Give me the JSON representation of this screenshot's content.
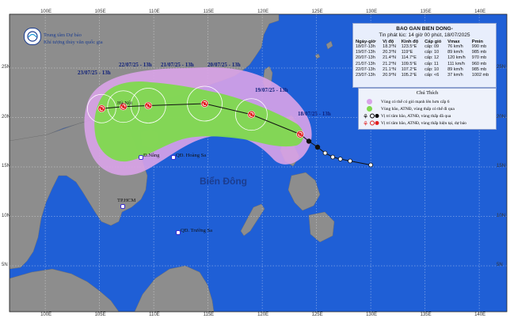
{
  "bulletin": {
    "title": "BAO GAN BIEN DONG-",
    "issued": "Tin phát lúc: 14 giờ 00 phút, 18/07/2025",
    "headers": [
      "Ngày-giờ",
      "Vị độ",
      "Kinh độ",
      "Cấp gió",
      "Vmax",
      "Pmin"
    ],
    "rows": [
      [
        "18/07-13h",
        "18.3°N",
        "123.5°E",
        "cấp: 09",
        "76 km/h",
        "990 mb"
      ],
      [
        "19/07-13h",
        "20.3°N",
        "119°E",
        "cấp: 10",
        "89 km/h",
        "985 mb"
      ],
      [
        "20/07-13h",
        "21.4°N",
        "114.7°E",
        "cấp: 12",
        "120 km/h",
        "970 mb"
      ],
      [
        "21/07-13h",
        "21.2°N",
        "109.5°E",
        "cấp: 11",
        "111 km/h",
        "960 mb"
      ],
      [
        "22/07-13h",
        "21.1°N",
        "107.2°E",
        "cấp: 10",
        "89 km/h",
        "985 mb"
      ],
      [
        "23/07-13h",
        "20.9°N",
        "105.2°E",
        "cấp: <6",
        "37 km/h",
        "1002 mb"
      ]
    ]
  },
  "agency": {
    "line1": "Trung tâm Dự báo",
    "line2": "Khí tượng thủy văn quốc gia"
  },
  "legend": {
    "title": "Chú Thích",
    "items": [
      {
        "text": "Vùng có thể có gió mạnh lên hơn cấp 6",
        "color": "#d9a3e8"
      },
      {
        "text": "Vùng bão, ATNĐ, vùng thấp có thể đi qua",
        "color": "#88dd55"
      },
      {
        "text": "Vị trí tâm bão, ATNĐ, vùng thấp đã qua",
        "color": "#000000"
      },
      {
        "text": "Vị trí tâm bão, ATNĐ, vùng thấp hiện tại, dự báo",
        "color": "#e02020"
      }
    ]
  },
  "forecast_labels": [
    {
      "text": "23/07/25 - 13h"
    },
    {
      "text": "22/07/25 - 13h"
    },
    {
      "text": "21/07/25 - 13h"
    },
    {
      "text": "20/07/25 - 13h"
    },
    {
      "text": "19/07/25 - 13h"
    },
    {
      "text": "18/07/25 - 13h"
    }
  ],
  "places": {
    "hanoi": "Hà Nội",
    "danang": "Đ.Nẵng",
    "hoangsa": "QĐ. Hoàng Sa",
    "hcm": "TP.HCM",
    "truongsa": "QĐ. Trường Sa",
    "sea": "Biển Đông"
  },
  "axes": {
    "lon_top": [
      "100E",
      "105E",
      "110E",
      "115E",
      "120E",
      "125E",
      "130E",
      "135E",
      "140E"
    ],
    "lon_bottom": [
      "100E",
      "105E",
      "110E",
      "115E",
      "120E",
      "125E",
      "130E",
      "135E",
      "140E"
    ],
    "lat_left": [
      "25N",
      "20N",
      "15N",
      "10N",
      "5N"
    ],
    "lat_right": [
      "25N",
      "20N",
      "15N",
      "10N",
      "5N"
    ]
  },
  "track": {
    "past": [
      {
        "lat": 18.3,
        "lon": 123.5
      },
      {
        "lat": 17.6,
        "lon": 124.3
      },
      {
        "lat": 17.0,
        "lon": 125.1
      },
      {
        "lat": 16.4,
        "lon": 125.8
      },
      {
        "lat": 16.0,
        "lon": 126.5
      },
      {
        "lat": 15.8,
        "lon": 127.2
      },
      {
        "lat": 15.6,
        "lon": 128.1
      },
      {
        "lat": 15.2,
        "lon": 130.0
      }
    ],
    "forecast": [
      {
        "lat": 18.3,
        "lon": 123.5
      },
      {
        "lat": 20.3,
        "lon": 119.0
      },
      {
        "lat": 21.4,
        "lon": 114.7
      },
      {
        "lat": 21.2,
        "lon": 109.5
      },
      {
        "lat": 21.1,
        "lon": 107.2
      },
      {
        "lat": 20.9,
        "lon": 105.2
      }
    ]
  },
  "colors": {
    "sea": "#1f5fd6",
    "land": "#8b8b8b",
    "strong_wind_zone": "#d9a3e8",
    "storm_zone": "#88dd55",
    "storm_symbol": "#e02020"
  }
}
